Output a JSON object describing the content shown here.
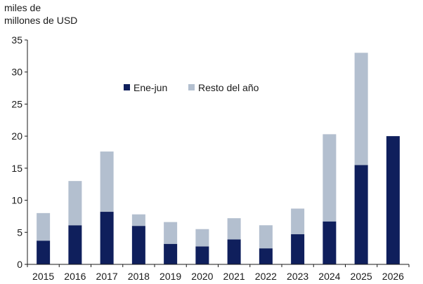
{
  "chart_data": {
    "type": "bar",
    "stacked": true,
    "ylabel_lines": [
      "miles de",
      "millones de USD"
    ],
    "ylim": [
      0,
      35
    ],
    "yticks": [
      0,
      5,
      10,
      15,
      20,
      25,
      30,
      35
    ],
    "categories": [
      "2015",
      "2016",
      "2017",
      "2018",
      "2019",
      "2020",
      "2021",
      "2022",
      "2023",
      "2024",
      "2025",
      "2026"
    ],
    "series": [
      {
        "name": "Ene-jun",
        "color": "#0f1f5c",
        "values": [
          3.7,
          6.1,
          8.2,
          6.0,
          3.2,
          2.8,
          3.9,
          2.5,
          4.7,
          6.7,
          15.5,
          20.0
        ]
      },
      {
        "name": "Resto del año",
        "color": "#b3bfcf",
        "values": [
          4.3,
          6.9,
          9.4,
          1.8,
          3.4,
          2.7,
          3.3,
          3.6,
          4.0,
          13.6,
          17.5,
          0
        ]
      }
    ],
    "legend_position": "top-center",
    "grid": false
  }
}
